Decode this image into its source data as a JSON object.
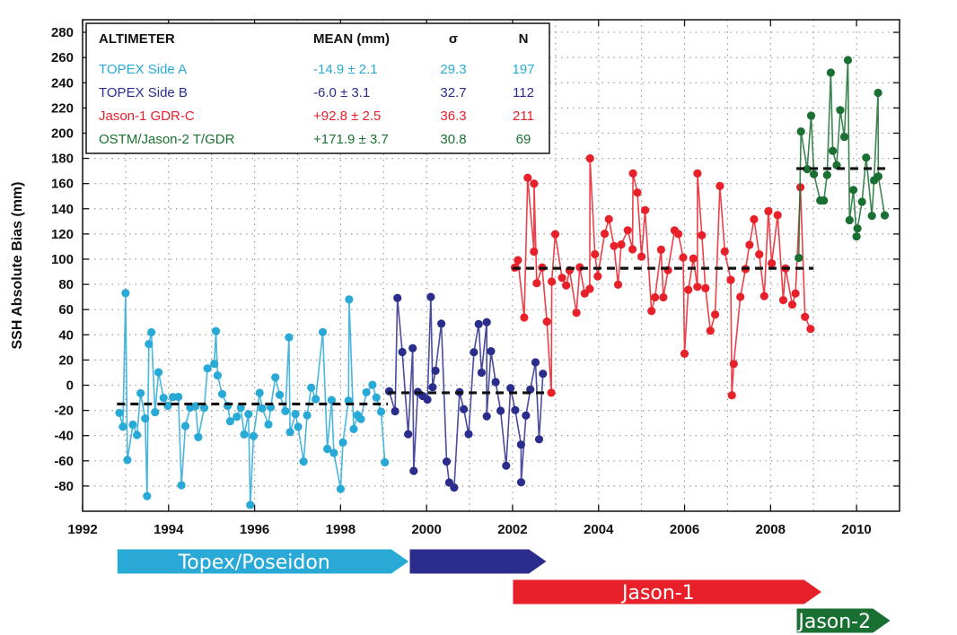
{
  "chart_data": {
    "type": "scatter",
    "ylabel": "SSH Absolute Bias (mm)",
    "xlabel": "",
    "xlim": [
      1992,
      2011
    ],
    "ylim": [
      -100,
      290
    ],
    "x_ticks": [
      "1992",
      "1994",
      "1996",
      "1998",
      "2000",
      "2002",
      "2004",
      "2006",
      "2008",
      "2010"
    ],
    "y_ticks": [
      "-80",
      "-60",
      "-40",
      "-20",
      "0",
      "20",
      "40",
      "60",
      "80",
      "100",
      "120",
      "140",
      "160",
      "180",
      "200",
      "220",
      "240",
      "260",
      "280"
    ],
    "grid": true,
    "legend": {
      "placement": "top-left",
      "headers": {
        "altimeter": "ALTIMETER",
        "mean": "MEAN (mm)",
        "sigma": "σ",
        "n": "N"
      },
      "rows": [
        {
          "name": "TOPEX Side A",
          "mean": "-14.9 ± 2.1",
          "sigma": "29.3",
          "n": "197",
          "color": "#29a9d6"
        },
        {
          "name": "TOPEX Side B",
          "mean": "-6.0 ± 3.1",
          "sigma": "32.7",
          "n": "112",
          "color": "#2b2d8c"
        },
        {
          "name": "Jason-1 GDR-C",
          "mean": "+92.8 ± 2.5",
          "sigma": "36.3",
          "n": "211",
          "color": "#e8202a"
        },
        {
          "name": "OSTM/Jason-2 T/GDR",
          "mean": "+171.9 ± 3.7",
          "sigma": "30.8",
          "n": "69",
          "color": "#1a7033"
        }
      ]
    },
    "series": [
      {
        "name": "TOPEX Side A",
        "color": "#29a9d6",
        "start": 1992.8,
        "end": 1999.1,
        "mean": -14.9,
        "sigma": 29.3,
        "n": 197,
        "highlights": [
          [
            1993.0,
            73
          ],
          [
            1993.6,
            42
          ],
          [
            1995.1,
            43
          ],
          [
            1998.2,
            68
          ],
          [
            1995.9,
            -95
          ],
          [
            1993.5,
            -88
          ],
          [
            1996.8,
            38
          ]
        ]
      },
      {
        "name": "TOPEX Side B",
        "color": "#2b2d8c",
        "start": 1999.1,
        "end": 2002.8,
        "mean": -6.0,
        "sigma": 32.7,
        "n": 112,
        "highlights": [
          [
            2000.1,
            70
          ],
          [
            2001.4,
            50
          ],
          [
            2002.2,
            -77
          ],
          [
            1999.7,
            -68
          ]
        ]
      },
      {
        "name": "Jason-1 GDR-C",
        "color": "#e8202a",
        "start": 2002.0,
        "end": 2009.0,
        "mean": 92.8,
        "sigma": 36.3,
        "n": 211,
        "highlights": [
          [
            2003.8,
            180
          ],
          [
            2004.8,
            168
          ],
          [
            2006.3,
            168
          ],
          [
            2002.5,
            160
          ],
          [
            2007.1,
            -8
          ],
          [
            2002.9,
            -6
          ],
          [
            2006.0,
            25
          ]
        ]
      },
      {
        "name": "OSTM/Jason-2 T/GDR",
        "color": "#1a7033",
        "start": 2008.6,
        "end": 2010.7,
        "mean": 171.9,
        "sigma": 30.8,
        "n": 69,
        "highlights": [
          [
            2009.8,
            258
          ],
          [
            2009.4,
            248
          ],
          [
            2010.5,
            232
          ],
          [
            2010.0,
            118
          ]
        ]
      }
    ],
    "mean_lines": [
      {
        "y": -14.9,
        "x0": 1992.8,
        "x1": 1999.1
      },
      {
        "y": -6.0,
        "x0": 1999.1,
        "x1": 2002.8
      },
      {
        "y": 92.8,
        "x0": 2002.0,
        "x1": 2009.0
      },
      {
        "y": 171.9,
        "x0": 2008.6,
        "x1": 2010.7
      }
    ]
  },
  "missions": [
    {
      "label": "Topex/Poseidon",
      "start": 1992.8,
      "end": 1999.6,
      "color": "#29a9d6",
      "row": 0
    },
    {
      "label": "",
      "start": 1999.6,
      "end": 2002.8,
      "color": "#2b2d8c",
      "row": 0
    },
    {
      "label": "Jason-1",
      "start": 2002.0,
      "end": 2009.2,
      "color": "#e8202a",
      "row": 1
    },
    {
      "label": "Jason-2",
      "start": 2008.6,
      "end": 2010.8,
      "color": "#1a7033",
      "row": 2
    }
  ]
}
